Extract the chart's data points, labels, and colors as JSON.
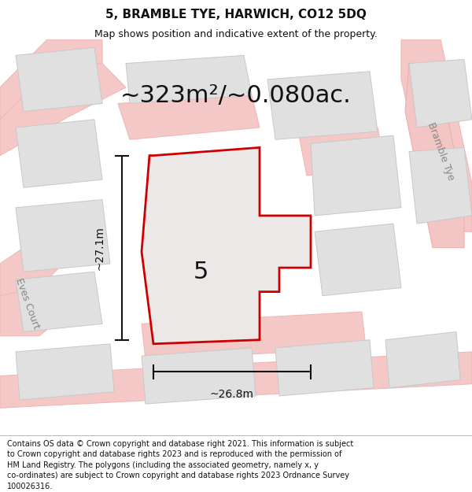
{
  "title": "5, BRAMBLE TYE, HARWICH, CO12 5DQ",
  "subtitle": "Map shows position and indicative extent of the property.",
  "area_text": "~323m²/~0.080ac.",
  "dim_h": "~26.8m",
  "dim_v": "~27.1m",
  "label": "5",
  "footer": "Contains OS data © Crown copyright and database right 2021. This information is subject\nto Crown copyright and database rights 2023 and is reproduced with the permission of\nHM Land Registry. The polygons (including the associated geometry, namely x, y\nco-ordinates) are subject to Crown copyright and database rights 2023 Ordnance Survey\n100026316.",
  "map_bg": "#f7f6f4",
  "road_color": "#f5c0c0",
  "road_fill": "#f0e8e8",
  "building_color": "#e0e0e0",
  "building_edge": "#cccccc",
  "property_fill": "#ede8e8",
  "property_border": "#cc0000",
  "dim_line_color": "#111111",
  "text_color": "#111111",
  "road_label_color": "#888888",
  "label_left": "Eves Court",
  "label_right": "Bramble Tye",
  "title_fontsize": 11,
  "subtitle_fontsize": 9,
  "area_fontsize": 22,
  "label_fontsize": 22,
  "dim_fontsize": 10,
  "road_label_fontsize": 9,
  "footer_fontsize": 7
}
